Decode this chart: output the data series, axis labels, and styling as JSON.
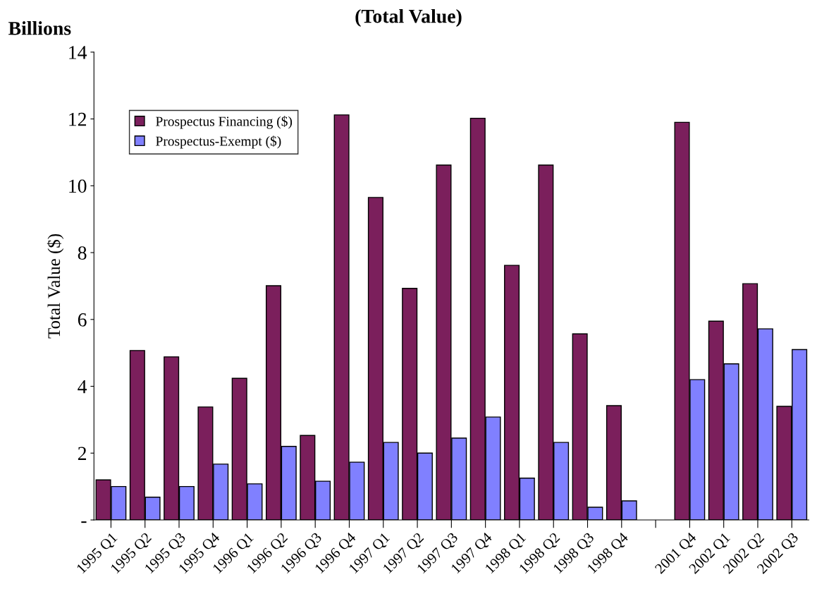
{
  "chart_data": {
    "type": "bar",
    "title": "(Total Value)",
    "ylabel": "Total Value ($)",
    "annotations": [
      "Billions"
    ],
    "categories": [
      "1995 Q1",
      "1995 Q2",
      "1995 Q3",
      "1995 Q4",
      "1996 Q1",
      "1996 Q2",
      "1996 Q3",
      "1996 Q4",
      "1997 Q1",
      "1997 Q2",
      "1997 Q3",
      "1997 Q4",
      "1998 Q1",
      "1998 Q2",
      "1998 Q3",
      "1998 Q4",
      null,
      "2001 Q4",
      "2002 Q1",
      "2002 Q2",
      "2002 Q3"
    ],
    "series": [
      {
        "name": "Prospectus Financing ($)",
        "color": "#7b1f5c",
        "values": [
          1.2,
          5.07,
          4.88,
          3.38,
          4.24,
          7.01,
          2.53,
          12.12,
          9.65,
          6.93,
          10.62,
          12.02,
          7.62,
          10.62,
          5.57,
          3.42,
          null,
          11.9,
          5.95,
          7.07,
          3.4
        ]
      },
      {
        "name": "Prospectus-Exempt ($)",
        "color": "#8080ff",
        "values": [
          1.0,
          0.68,
          1.0,
          1.67,
          1.08,
          2.2,
          1.16,
          1.73,
          2.32,
          2.0,
          2.45,
          3.08,
          1.25,
          2.32,
          0.38,
          0.57,
          null,
          4.2,
          4.67,
          5.72,
          5.1
        ]
      }
    ],
    "ylim": [
      0,
      14
    ],
    "yticks": [
      {
        "value": 0,
        "label": "-"
      },
      2,
      4,
      6,
      8,
      10,
      12,
      14
    ],
    "grid": false,
    "legend": "top left"
  }
}
